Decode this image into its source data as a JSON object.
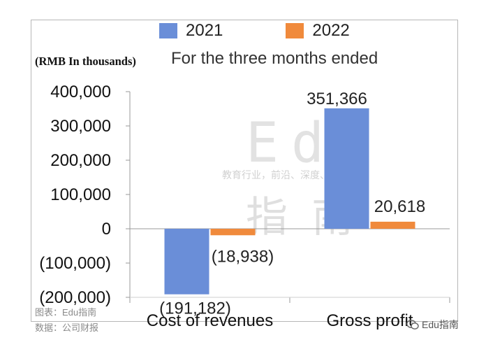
{
  "legend": [
    {
      "label": "2021",
      "color": "#6a8ed8"
    },
    {
      "label": "2022",
      "color": "#f08a3c"
    }
  ],
  "unit_label": "(RMB In thousands)",
  "subtitle": "For the three months ended",
  "watermark": {
    "big": "Edu",
    "tagline": "教育行业，前沿、深度、独家",
    "cn": "指南"
  },
  "source": {
    "line1": "图表：Edu指南",
    "line2": "数据：公司财报"
  },
  "brand": {
    "label": "Edu指南",
    "icon": "wechat-icon"
  },
  "chart_data": {
    "type": "bar",
    "categories": [
      "Cost of revenues",
      "Gross profit"
    ],
    "series": [
      {
        "name": "2021",
        "values": [
          -191182,
          351366
        ],
        "labels": [
          "(191,182)",
          "351,366"
        ],
        "color": "#6a8ed8"
      },
      {
        "name": "2022",
        "values": [
          -18938,
          20618
        ],
        "labels": [
          "(18,938)",
          "20,618"
        ],
        "color": "#f08a3c"
      }
    ],
    "ylim": [
      -200000,
      400000
    ],
    "yticks": [
      400000,
      300000,
      200000,
      100000,
      0,
      -100000,
      -200000
    ],
    "ytick_labels": [
      "400,000",
      "300,000",
      "200,000",
      "100,000",
      "0",
      "(100,000)",
      "(200,000)"
    ],
    "grid": false
  }
}
